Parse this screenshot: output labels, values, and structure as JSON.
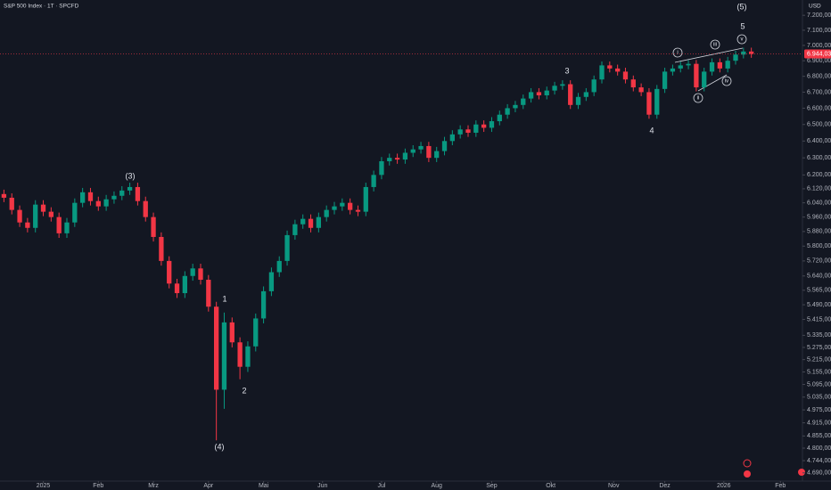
{
  "chart_data": {
    "type": "candlestick",
    "title": "S&P 500 Index · 1T · SPCFD",
    "currency": "USD",
    "log": true,
    "grid": false,
    "up_color": "#089981",
    "down_color": "#f23645",
    "xlim": [
      -0.5,
      101.5
    ],
    "ylim": [
      4654,
      7304
    ],
    "xticks": [
      {
        "value": 5,
        "label": "2025"
      },
      {
        "value": 12,
        "label": "Feb"
      },
      {
        "value": 19,
        "label": "Mrz"
      },
      {
        "value": 26,
        "label": "Apr"
      },
      {
        "value": 33,
        "label": "Mai"
      },
      {
        "value": 40.5,
        "label": "Jun"
      },
      {
        "value": 48,
        "label": "Jul"
      },
      {
        "value": 55,
        "label": "Aug"
      },
      {
        "value": 62,
        "label": "Sep"
      },
      {
        "value": 69.5,
        "label": "Okt"
      },
      {
        "value": 77.5,
        "label": "Nov"
      },
      {
        "value": 84,
        "label": "Dez"
      },
      {
        "value": 91.5,
        "label": "2026"
      },
      {
        "value": 98.7,
        "label": "Feb"
      }
    ],
    "yticks": [
      {
        "value": 7200,
        "label": "7.200,00"
      },
      {
        "value": 7100,
        "label": "7.100,00"
      },
      {
        "value": 7000,
        "label": "7.000,00"
      },
      {
        "value": 6900,
        "label": "6.900,00"
      },
      {
        "value": 6800,
        "label": "6.800,00"
      },
      {
        "value": 6700,
        "label": "6.700,00"
      },
      {
        "value": 6600,
        "label": "6.600,00"
      },
      {
        "value": 6500,
        "label": "6.500,00"
      },
      {
        "value": 6400,
        "label": "6.400,00"
      },
      {
        "value": 6300,
        "label": "6.300,00"
      },
      {
        "value": 6200,
        "label": "6.200,00"
      },
      {
        "value": 6120,
        "label": "6.120,00"
      },
      {
        "value": 6040,
        "label": "6.040,00"
      },
      {
        "value": 5960,
        "label": "5.960,00"
      },
      {
        "value": 5880,
        "label": "5.880,00"
      },
      {
        "value": 5800,
        "label": "5.800,00"
      },
      {
        "value": 5720,
        "label": "5.720,00"
      },
      {
        "value": 5640,
        "label": "5.640,00"
      },
      {
        "value": 5565,
        "label": "5.565,00"
      },
      {
        "value": 5490,
        "label": "5.490,00"
      },
      {
        "value": 5415,
        "label": "5.415,00"
      },
      {
        "value": 5335,
        "label": "5.335,00"
      },
      {
        "value": 5275,
        "label": "5.275,00"
      },
      {
        "value": 5215,
        "label": "5.215,00"
      },
      {
        "value": 5155,
        "label": "5.155,00"
      },
      {
        "value": 5095,
        "label": "5.095,00"
      },
      {
        "value": 5035,
        "label": "5.035,00"
      },
      {
        "value": 4975,
        "label": "4.975,00"
      },
      {
        "value": 4915,
        "label": "4.915,00"
      },
      {
        "value": 4855,
        "label": "4.855,00"
      },
      {
        "value": 4800,
        "label": "4.800,00"
      },
      {
        "value": 4744,
        "label": "4.744,00"
      },
      {
        "value": 4690,
        "label": "4.690,00"
      }
    ],
    "last_price": {
      "value": 6944.03,
      "label": "6.944,03"
    },
    "annotations": [
      "(3)",
      "1",
      "2",
      "(4)",
      "3",
      "4",
      "5",
      "(5)",
      "i",
      "ii",
      "iii",
      "iv",
      "v"
    ],
    "open": [
      6090,
      6069,
      6000,
      5930,
      5900,
      6030,
      5990,
      5960,
      5870,
      5930,
      6040,
      6100,
      6050,
      6020,
      6060,
      6080,
      6110,
      6130,
      6050,
      5960,
      5850,
      5720,
      5600,
      5550,
      5640,
      5680,
      5620,
      5480,
      5070,
      5400,
      5300,
      5180,
      5280,
      5420,
      5560,
      5660,
      5720,
      5860,
      5920,
      5950,
      5900,
      5960,
      6000,
      6020,
      6040,
      6000,
      5990,
      6130,
      6200,
      6280,
      6300,
      6290,
      6330,
      6350,
      6370,
      6300,
      6340,
      6400,
      6440,
      6470,
      6450,
      6500,
      6480,
      6520,
      6560,
      6600,
      6620,
      6660,
      6700,
      6680,
      6710,
      6740,
      6750,
      6620,
      6670,
      6700,
      6780,
      6870,
      6850,
      6830,
      6780,
      6730,
      6700,
      6560,
      6720,
      6830,
      6850,
      6870,
      6880,
      6730,
      6830,
      6890,
      6850,
      6900,
      6940,
      6960
    ],
    "high": [
      6115,
      6094,
      6025,
      5955,
      6055,
      6055,
      6015,
      5985,
      5955,
      6065,
      6125,
      6125,
      6075,
      6085,
      6105,
      6135,
      6155,
      6155,
      6075,
      5985,
      5875,
      5745,
      5625,
      5665,
      5705,
      5705,
      5645,
      5505,
      5450,
      5425,
      5325,
      5305,
      5445,
      5585,
      5685,
      5745,
      5885,
      5945,
      5975,
      5975,
      5985,
      6025,
      6045,
      6065,
      6065,
      6025,
      6155,
      6225,
      6305,
      6325,
      6325,
      6355,
      6375,
      6395,
      6395,
      6365,
      6425,
      6465,
      6495,
      6495,
      6525,
      6525,
      6545,
      6585,
      6625,
      6645,
      6685,
      6725,
      6725,
      6735,
      6765,
      6775,
      6775,
      6695,
      6725,
      6805,
      6895,
      6895,
      6875,
      6855,
      6805,
      6755,
      6725,
      6745,
      6855,
      6875,
      6895,
      6905,
      6905,
      6855,
      6915,
      6915,
      6925,
      6965,
      6985,
      6985
    ],
    "low": [
      6044,
      5975,
      5905,
      5875,
      5875,
      5965,
      5935,
      5845,
      5845,
      5905,
      6015,
      6025,
      5995,
      5995,
      6035,
      6055,
      6085,
      6025,
      5935,
      5825,
      5695,
      5575,
      5525,
      5525,
      5615,
      5595,
      5455,
      4835,
      4980,
      5275,
      5120,
      5155,
      5255,
      5395,
      5535,
      5635,
      5695,
      5835,
      5895,
      5875,
      5875,
      5935,
      5975,
      5995,
      5975,
      5965,
      5965,
      6105,
      6175,
      6255,
      6265,
      6265,
      6305,
      6325,
      6275,
      6275,
      6315,
      6375,
      6415,
      6425,
      6425,
      6455,
      6455,
      6495,
      6535,
      6575,
      6595,
      6635,
      6655,
      6655,
      6685,
      6715,
      6595,
      6595,
      6645,
      6675,
      6755,
      6825,
      6805,
      6755,
      6705,
      6675,
      6535,
      6535,
      6695,
      6805,
      6825,
      6845,
      6705,
      6705,
      6805,
      6825,
      6825,
      6875,
      6915,
      6919
    ],
    "close": [
      6069,
      6000,
      5930,
      5900,
      6030,
      5990,
      5960,
      5870,
      5930,
      6040,
      6100,
      6050,
      6020,
      6060,
      6080,
      6110,
      6130,
      6050,
      5960,
      5850,
      5720,
      5600,
      5550,
      5640,
      5680,
      5620,
      5480,
      5070,
      5400,
      5300,
      5180,
      5280,
      5420,
      5560,
      5660,
      5720,
      5860,
      5920,
      5950,
      5900,
      5960,
      6000,
      6020,
      6040,
      6000,
      5990,
      6130,
      6200,
      6280,
      6300,
      6290,
      6330,
      6350,
      6370,
      6300,
      6340,
      6400,
      6440,
      6470,
      6450,
      6500,
      6480,
      6520,
      6560,
      6600,
      6620,
      6660,
      6700,
      6680,
      6710,
      6740,
      6750,
      6620,
      6670,
      6700,
      6780,
      6870,
      6850,
      6830,
      6780,
      6730,
      6700,
      6560,
      6720,
      6830,
      6850,
      6870,
      6880,
      6730,
      6830,
      6890,
      6850,
      6900,
      6940,
      6960,
      6944
    ]
  }
}
